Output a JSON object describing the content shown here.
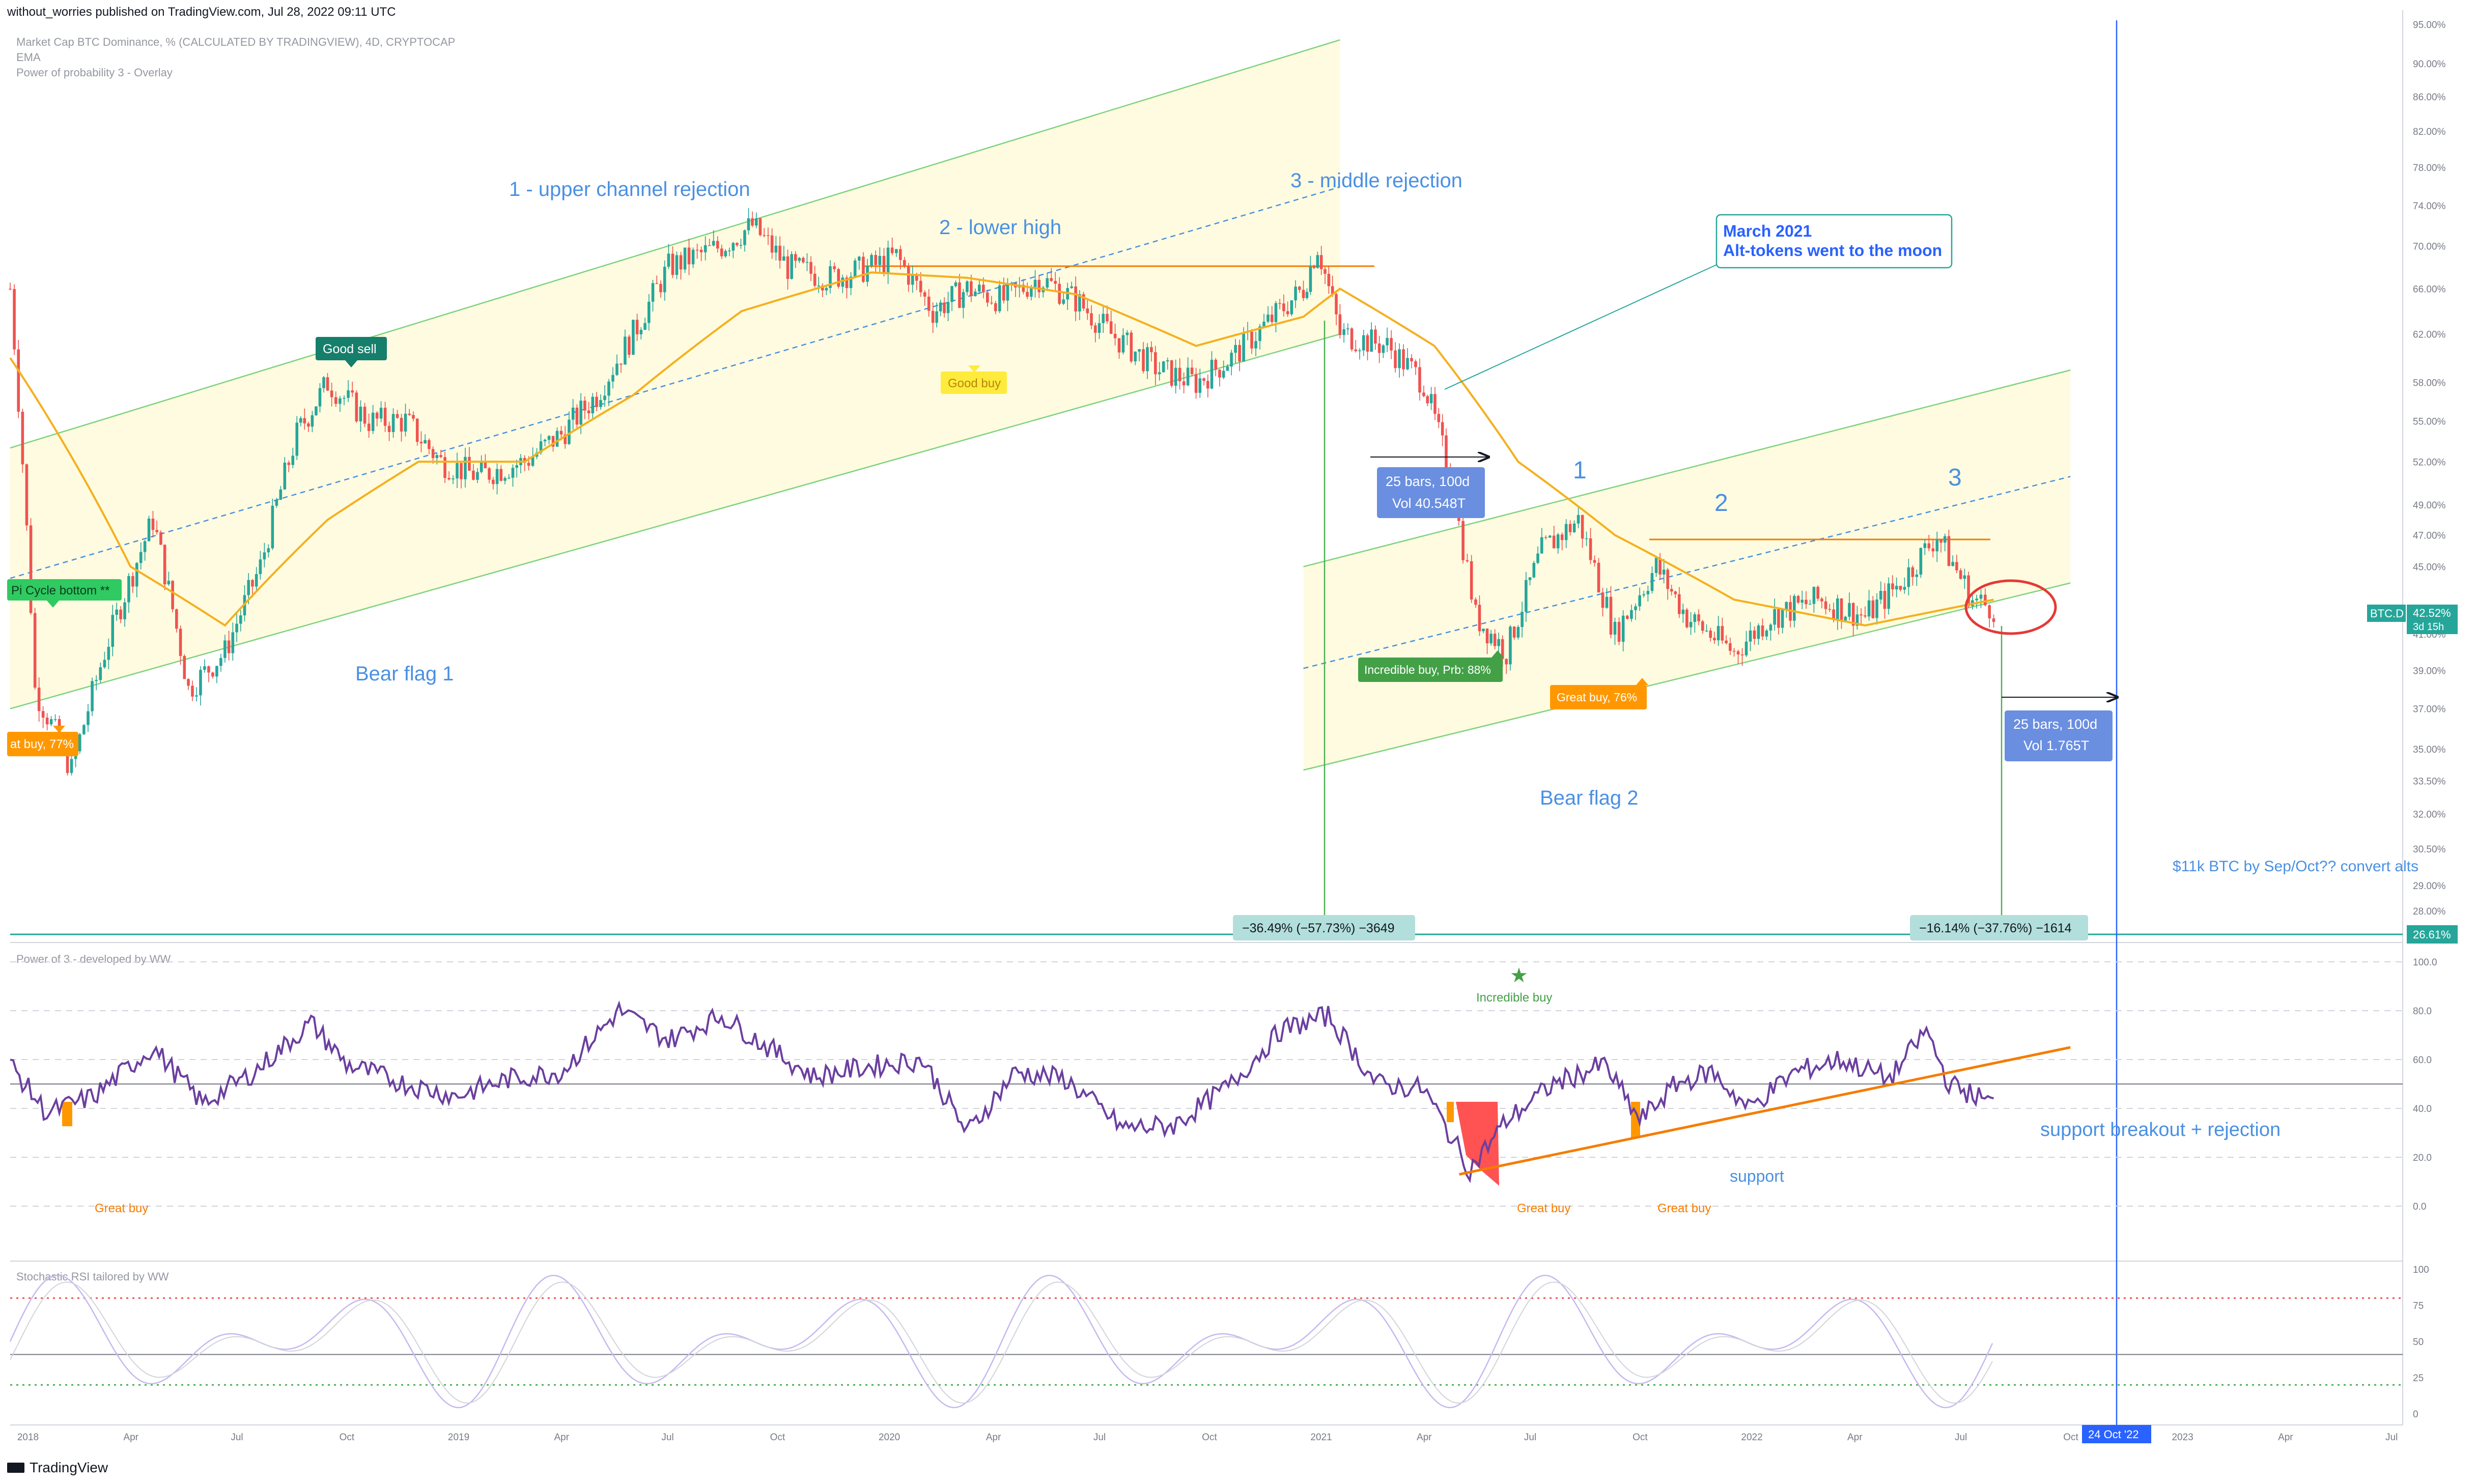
{
  "header": {
    "published": "without_worries published on TradingView.com, Jul 28, 2022 09:11 UTC",
    "legend_main": "Market Cap BTC Dominance, % (CALCULATED BY TRADINGVIEW), 4D, CRYPTOCAP",
    "legend_ema": "EMA",
    "legend_overlay": "Power of probability 3 - Overlay"
  },
  "footer": {
    "brand": "TradingView"
  },
  "chart_data": {
    "type": "candlestick",
    "symbol": "BTC.D",
    "timeframe": "4D",
    "price_axis_labels": [
      "95.00%",
      "90.00%",
      "86.00%",
      "82.00%",
      "78.00%",
      "74.00%",
      "70.00%",
      "66.00%",
      "62.00%",
      "58.00%",
      "55.00%",
      "52.00%",
      "49.00%",
      "47.00%",
      "45.00%",
      "41.00%",
      "39.00%",
      "37.00%",
      "35.00%",
      "33.50%",
      "32.00%",
      "30.50%",
      "29.00%",
      "28.00%"
    ],
    "price_ticks": [
      95,
      90,
      86,
      82,
      78,
      74,
      70,
      66,
      62,
      58,
      55,
      52,
      49,
      47,
      45,
      41,
      39,
      37,
      35,
      33.5,
      32,
      30.5,
      29,
      28
    ],
    "time_axis_labels": [
      "2018",
      "Apr",
      "Jul",
      "Oct",
      "2019",
      "Apr",
      "Jul",
      "Oct",
      "2020",
      "Apr",
      "Jul",
      "Oct",
      "2021",
      "Apr",
      "Jul",
      "Oct",
      "2022",
      "Apr",
      "Jul",
      "Oct",
      "2023",
      "Apr",
      "Jul"
    ],
    "last_value": {
      "symbol": "BTC.D",
      "value": "42.52%",
      "countdown": "3d 15h"
    },
    "hline_value": "26.61%",
    "date_marker": "24 Oct '22",
    "close_path": [
      [
        "2017-12-20",
        66
      ],
      [
        "2018-01-10",
        38
      ],
      [
        "2018-02-10",
        34
      ],
      [
        "2018-03-10",
        40
      ],
      [
        "2018-04-20",
        48
      ],
      [
        "2018-05-20",
        38
      ],
      [
        "2018-06-20",
        40
      ],
      [
        "2018-07-20",
        45
      ],
      [
        "2018-08-20",
        54
      ],
      [
        "2018-09-15",
        58
      ],
      [
        "2018-10-20",
        55
      ],
      [
        "2018-11-20",
        55
      ],
      [
        "2018-12-20",
        52
      ],
      [
        "2019-01-20",
        51
      ],
      [
        "2019-03-01",
        52
      ],
      [
        "2019-04-01",
        54
      ],
      [
        "2019-05-01",
        57
      ],
      [
        "2019-06-01",
        62
      ],
      [
        "2019-07-01",
        68
      ],
      [
        "2019-08-15",
        70
      ],
      [
        "2019-09-10",
        72
      ],
      [
        "2019-10-10",
        68
      ],
      [
        "2019-11-15",
        67
      ],
      [
        "2019-12-20",
        68
      ],
      [
        "2020-01-10",
        69
      ],
      [
        "2020-02-10",
        64
      ],
      [
        "2020-03-10",
        66
      ],
      [
        "2020-04-10",
        65
      ],
      [
        "2020-05-10",
        67
      ],
      [
        "2020-06-10",
        65
      ],
      [
        "2020-07-10",
        62
      ],
      [
        "2020-08-20",
        59
      ],
      [
        "2020-09-20",
        58
      ],
      [
        "2020-10-20",
        60
      ],
      [
        "2020-11-20",
        63
      ],
      [
        "2020-12-20",
        66
      ],
      [
        "2021-01-01",
        70
      ],
      [
        "2021-01-20",
        62
      ],
      [
        "2021-03-01",
        61
      ],
      [
        "2021-04-01",
        58
      ],
      [
        "2021-04-20",
        52
      ],
      [
        "2021-05-15",
        42
      ],
      [
        "2021-06-10",
        40
      ],
      [
        "2021-07-10",
        46
      ],
      [
        "2021-08-10",
        48
      ],
      [
        "2021-09-10",
        41
      ],
      [
        "2021-10-15",
        45
      ],
      [
        "2021-11-10",
        42
      ],
      [
        "2021-12-20",
        40
      ],
      [
        "2022-01-20",
        42
      ],
      [
        "2022-03-01",
        43
      ],
      [
        "2022-04-10",
        42
      ],
      [
        "2022-05-10",
        44
      ],
      [
        "2022-06-10",
        47
      ],
      [
        "2022-07-10",
        43
      ],
      [
        "2022-07-28",
        42.5
      ]
    ],
    "ema_path": [
      [
        "2017-12-20",
        60
      ],
      [
        "2018-04-01",
        45
      ],
      [
        "2018-06-20",
        41.5
      ],
      [
        "2018-09-15",
        48
      ],
      [
        "2018-12-01",
        52
      ],
      [
        "2019-03-01",
        52
      ],
      [
        "2019-06-01",
        57
      ],
      [
        "2019-09-01",
        64
      ],
      [
        "2019-12-20",
        67.5
      ],
      [
        "2020-03-10",
        67
      ],
      [
        "2020-06-10",
        65.5
      ],
      [
        "2020-09-20",
        61
      ],
      [
        "2020-12-20",
        63.5
      ],
      [
        "2021-01-20",
        66
      ],
      [
        "2021-04-10",
        61
      ],
      [
        "2021-06-20",
        52
      ],
      [
        "2021-09-10",
        47
      ],
      [
        "2021-12-20",
        43
      ],
      [
        "2022-04-10",
        41.5
      ],
      [
        "2022-07-28",
        43
      ]
    ],
    "channels": [
      {
        "name": "channel-1",
        "lower_start": [
          "2017-12-20",
          37
        ],
        "lower_end": [
          "2021-01-20",
          62
        ],
        "upper_start": [
          "2017-12-20",
          53
        ],
        "upper_end": [
          "2021-01-20",
          93
        ]
      },
      {
        "name": "channel-2",
        "lower_start": [
          "2020-12-20",
          34
        ],
        "lower_end": [
          "2022-10-01",
          44
        ],
        "upper_start": [
          "2020-12-20",
          45
        ],
        "upper_end": [
          "2022-10-01",
          59
        ]
      }
    ],
    "annotations": {
      "upper_channel": "1 - upper channel rejection",
      "lower_high": "2 - lower high",
      "middle_rejection": "3 - middle rejection",
      "bear_flag_1": "Bear flag 1",
      "bear_flag_2": "Bear flag 2",
      "num_1": "1",
      "num_2": "2",
      "num_3": "3",
      "march_title": "March 2021",
      "march_sub": "Alt-tokens went to the moon",
      "target": "$11k BTC by Sep/Oct?? convert alts",
      "pi_cycle": "Pi Cycle bottom **",
      "good_sell": "Good sell",
      "good_buy": "Good buy",
      "great_buy_77": "at buy,  77%",
      "incredible_buy_88": "Incredible buy, Prb: 88%",
      "great_buy_76": "Great buy,  76%",
      "bars_1_l1": "25 bars, 100d",
      "bars_1_l2": "Vol 40.548T",
      "bars_2_l1": "25 bars, 100d",
      "bars_2_l2": "Vol 1.765T",
      "measure_1": "−36.49% (−57.73%) −3649",
      "measure_2": "−16.14% (−37.76%) −1614"
    },
    "indicator_1": {
      "title": "Power of 3 - developed by WW",
      "axis_labels": [
        "100.0",
        "80.0",
        "60.0",
        "40.0",
        "20.0",
        "0.0"
      ],
      "ticks": [
        100,
        80,
        60,
        40,
        20,
        0
      ],
      "incredible_buy": "Incredible buy",
      "great_buy": "Great buy",
      "support": "support",
      "breakout": "support breakout + rejection",
      "path": [
        [
          "2017-12-20",
          58
        ],
        [
          "2018-01-20",
          38
        ],
        [
          "2018-03-01",
          45
        ],
        [
          "2018-04-20",
          65
        ],
        [
          "2018-06-01",
          42
        ],
        [
          "2018-07-15",
          55
        ],
        [
          "2018-09-01",
          75
        ],
        [
          "2018-10-01",
          58
        ],
        [
          "2018-11-20",
          50
        ],
        [
          "2019-01-01",
          45
        ],
        [
          "2019-02-15",
          52
        ],
        [
          "2019-04-01",
          55
        ],
        [
          "2019-05-20",
          80
        ],
        [
          "2019-07-01",
          68
        ],
        [
          "2019-08-15",
          78
        ],
        [
          "2019-09-20",
          66
        ],
        [
          "2019-11-01",
          53
        ],
        [
          "2019-12-15",
          57
        ],
        [
          "2020-02-01",
          60
        ],
        [
          "2020-03-10",
          30
        ],
        [
          "2020-04-20",
          55
        ],
        [
          "2020-06-01",
          52
        ],
        [
          "2020-07-20",
          32
        ],
        [
          "2020-09-01",
          33
        ],
        [
          "2020-10-20",
          50
        ],
        [
          "2020-12-01",
          72
        ],
        [
          "2021-01-10",
          78
        ],
        [
          "2021-02-20",
          50
        ],
        [
          "2021-04-01",
          48
        ],
        [
          "2021-05-10",
          15
        ],
        [
          "2021-06-10",
          35
        ],
        [
          "2021-07-20",
          50
        ],
        [
          "2021-09-01",
          58
        ],
        [
          "2021-10-01",
          35
        ],
        [
          "2021-11-01",
          50
        ],
        [
          "2021-12-01",
          55
        ],
        [
          "2022-01-01",
          40
        ],
        [
          "2022-02-10",
          55
        ],
        [
          "2022-03-20",
          60
        ],
        [
          "2022-05-01",
          52
        ],
        [
          "2022-06-01",
          72
        ],
        [
          "2022-06-20",
          50
        ],
        [
          "2022-07-28",
          42
        ]
      ],
      "support_line": [
        [
          "2021-05-01",
          13
        ],
        [
          "2022-10-01",
          65
        ]
      ],
      "midline": 50
    },
    "indicator_2": {
      "title": "Stochastic RSI tailored by WW",
      "axis_labels": [
        "100",
        "75",
        "50",
        "25",
        "0"
      ],
      "ticks": [
        100,
        75,
        50,
        25,
        0
      ],
      "upper_band": 80,
      "lower_band": 20,
      "midline": 41
    }
  }
}
